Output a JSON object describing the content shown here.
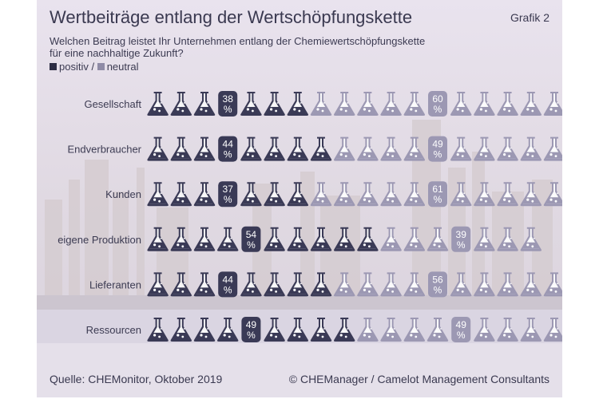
{
  "chart_data": {
    "type": "pictograph",
    "title": "Wertbeiträge entlang der Wertschöpfungskette",
    "subtitle_line1": "Welchen Beitrag leistet Ihr Unternehmen entlang der Chemiewertschöpfungskette",
    "subtitle_line2": "für eine nachhaltige Zukunft?",
    "label": "Grafik 2",
    "legend": {
      "positive": "positiv",
      "separator": " / ",
      "neutral": "neutral"
    },
    "categories": [
      "Gesellschaft",
      "Endverbraucher",
      "Kunden",
      "eigene Produktion",
      "Lieferanten",
      "Ressourcen"
    ],
    "series": [
      {
        "name": "positiv",
        "values": [
          38,
          44,
          37,
          54,
          44,
          49
        ]
      },
      {
        "name": "neutral",
        "values": [
          60,
          49,
          61,
          39,
          56,
          49
        ]
      }
    ],
    "icons_positive": [
      6,
      7,
      6,
      9,
      7,
      8
    ],
    "icons_neutral": [
      10,
      9,
      11,
      6,
      9,
      8
    ],
    "icon": "erlenmeyer-flask-icon",
    "colors": {
      "positive": "#3a3a56",
      "neutral": "#9c98b3",
      "text": "#3c3b52",
      "background": "#e7e1ec"
    }
  },
  "footer": {
    "source": "Quelle: CHEMonitor, Oktober 2019",
    "copyright": "© CHEManager / Camelot Management Consultants"
  }
}
